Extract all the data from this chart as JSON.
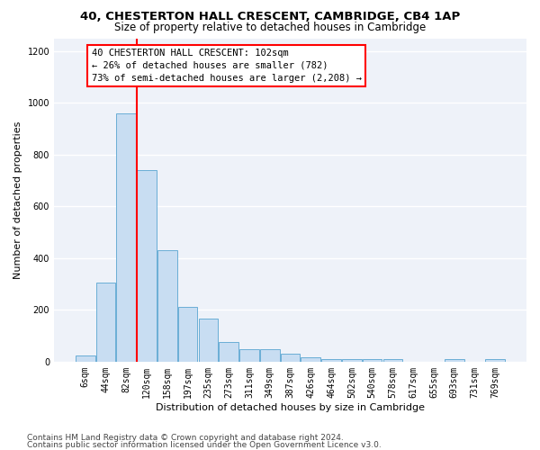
{
  "title1": "40, CHESTERTON HALL CRESCENT, CAMBRIDGE, CB4 1AP",
  "title2": "Size of property relative to detached houses in Cambridge",
  "xlabel": "Distribution of detached houses by size in Cambridge",
  "ylabel": "Number of detached properties",
  "footnote1": "Contains HM Land Registry data © Crown copyright and database right 2024.",
  "footnote2": "Contains public sector information licensed under the Open Government Licence v3.0.",
  "bin_labels": [
    "6sqm",
    "44sqm",
    "82sqm",
    "120sqm",
    "158sqm",
    "197sqm",
    "235sqm",
    "273sqm",
    "311sqm",
    "349sqm",
    "387sqm",
    "426sqm",
    "464sqm",
    "502sqm",
    "540sqm",
    "578sqm",
    "617sqm",
    "655sqm",
    "693sqm",
    "731sqm",
    "769sqm"
  ],
  "bar_values": [
    25,
    305,
    960,
    740,
    430,
    210,
    165,
    75,
    48,
    48,
    30,
    18,
    10,
    10,
    10,
    10,
    0,
    0,
    10,
    0,
    10
  ],
  "bar_color": "#c8ddf2",
  "bar_edge_color": "#6aaed6",
  "red_line_x": 2.5,
  "ylim": [
    0,
    1250
  ],
  "yticks": [
    0,
    200,
    400,
    600,
    800,
    1000,
    1200
  ],
  "annotation_text": "40 CHESTERTON HALL CRESCENT: 102sqm\n← 26% of detached houses are smaller (782)\n73% of semi-detached houses are larger (2,208) →",
  "bg_color": "#eef2f9",
  "grid_color": "#ffffff",
  "title1_fontsize": 9.5,
  "title2_fontsize": 8.5,
  "ylabel_fontsize": 8,
  "xlabel_fontsize": 8,
  "tick_fontsize": 7,
  "footnote_fontsize": 6.5
}
